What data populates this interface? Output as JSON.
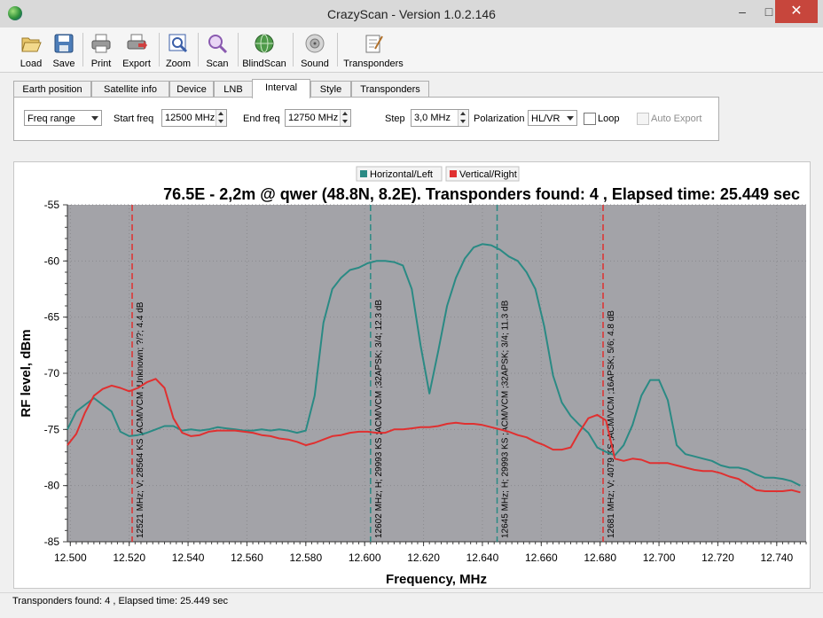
{
  "window": {
    "title": "CrazyScan - Version 1.0.2.146",
    "minimize": "–",
    "maximize": "□",
    "close": "✕"
  },
  "toolbar": {
    "buttons": [
      {
        "label": "Load",
        "icon": "folder-open-icon"
      },
      {
        "label": "Save",
        "icon": "floppy-disk-icon"
      },
      {
        "label": "Print",
        "icon": "printer-icon"
      },
      {
        "label": "Export",
        "icon": "export-printer-icon"
      },
      {
        "label": "Zoom",
        "icon": "zoom-icon"
      },
      {
        "label": "Scan",
        "icon": "magnifier-icon"
      },
      {
        "label": "BlindScan",
        "icon": "globe-icon"
      },
      {
        "label": "Sound",
        "icon": "speaker-icon"
      },
      {
        "label": "Transponders",
        "icon": "notepad-icon"
      }
    ]
  },
  "tabs": [
    {
      "label": "Earth position"
    },
    {
      "label": "Satellite info"
    },
    {
      "label": "Device"
    },
    {
      "label": "LNB"
    },
    {
      "label": "Interval",
      "active": true
    },
    {
      "label": "Style"
    },
    {
      "label": "Transponders"
    }
  ],
  "interval": {
    "mode": "Freq range",
    "start_label": "Start freq",
    "start_value": "12500 MHz",
    "end_label": "End freq",
    "end_value": "12750 MHz",
    "step_label": "Step",
    "step_value": "3,0 MHz",
    "polarization_label": "Polarization",
    "polarization_value": "HL/VR",
    "loop_label": "Loop",
    "loop_checked": false,
    "autoexport_label": "Auto Export",
    "autoexport_checked": false,
    "autoexport_enabled": false
  },
  "chart_data": {
    "type": "line",
    "title": "76.5E - 2,2m @ qwer (48.8N, 8.2E). Transponders found: 4 , Elapsed time: 25.449 sec",
    "xlabel": "Frequency, MHz",
    "ylabel": "RF level, dBm",
    "xlim": [
      12499,
      12750
    ],
    "ylim": [
      -85,
      -55
    ],
    "x_ticks": [
      "12.500",
      "12.520",
      "12.540",
      "12.560",
      "12.580",
      "12.600",
      "12.620",
      "12.640",
      "12.660",
      "12.680",
      "12.700",
      "12.720",
      "12.740"
    ],
    "y_ticks": [
      "-55",
      "-60",
      "-65",
      "-70",
      "-75",
      "-80",
      "-85"
    ],
    "plot_background": "#a3a3a8",
    "legend": {
      "position": "top-center"
    },
    "series": [
      {
        "name": "Horizontal/Left",
        "color": "#2a8a84",
        "points": [
          [
            12499,
            -75.0
          ],
          [
            12502,
            -73.4
          ],
          [
            12505,
            -72.8
          ],
          [
            12508,
            -72.2
          ],
          [
            12511,
            -72.8
          ],
          [
            12514,
            -73.4
          ],
          [
            12517,
            -75.2
          ],
          [
            12520,
            -75.6
          ],
          [
            12523,
            -75.5
          ],
          [
            12526,
            -75.3
          ],
          [
            12529,
            -75.0
          ],
          [
            12532,
            -74.7
          ],
          [
            12535,
            -74.7
          ],
          [
            12538,
            -75.1
          ],
          [
            12541,
            -75.0
          ],
          [
            12544,
            -75.1
          ],
          [
            12547,
            -75.0
          ],
          [
            12550,
            -74.8
          ],
          [
            12553,
            -74.9
          ],
          [
            12556,
            -75.0
          ],
          [
            12559,
            -75.1
          ],
          [
            12562,
            -75.1
          ],
          [
            12565,
            -75.0
          ],
          [
            12568,
            -75.1
          ],
          [
            12571,
            -75.0
          ],
          [
            12574,
            -75.1
          ],
          [
            12577,
            -75.3
          ],
          [
            12580,
            -75.1
          ],
          [
            12583,
            -72.0
          ],
          [
            12586,
            -65.5
          ],
          [
            12589,
            -62.5
          ],
          [
            12592,
            -61.5
          ],
          [
            12595,
            -60.8
          ],
          [
            12598,
            -60.6
          ],
          [
            12601,
            -60.2
          ],
          [
            12604,
            -60.0
          ],
          [
            12607,
            -60.0
          ],
          [
            12610,
            -60.1
          ],
          [
            12613,
            -60.4
          ],
          [
            12616,
            -62.5
          ],
          [
            12619,
            -67.5
          ],
          [
            12622,
            -71.8
          ],
          [
            12625,
            -68.0
          ],
          [
            12628,
            -64.0
          ],
          [
            12631,
            -61.5
          ],
          [
            12634,
            -59.8
          ],
          [
            12637,
            -58.8
          ],
          [
            12640,
            -58.5
          ],
          [
            12643,
            -58.6
          ],
          [
            12646,
            -59.0
          ],
          [
            12649,
            -59.6
          ],
          [
            12652,
            -60.0
          ],
          [
            12655,
            -61.0
          ],
          [
            12658,
            -62.5
          ],
          [
            12661,
            -65.8
          ],
          [
            12664,
            -70.2
          ],
          [
            12667,
            -72.6
          ],
          [
            12670,
            -73.8
          ],
          [
            12673,
            -74.6
          ],
          [
            12676,
            -75.3
          ],
          [
            12679,
            -76.6
          ],
          [
            12682,
            -77.0
          ],
          [
            12685,
            -77.3
          ],
          [
            12688,
            -76.4
          ],
          [
            12691,
            -74.6
          ],
          [
            12694,
            -72.0
          ],
          [
            12697,
            -70.6
          ],
          [
            12700,
            -70.6
          ],
          [
            12703,
            -72.4
          ],
          [
            12706,
            -76.4
          ],
          [
            12709,
            -77.2
          ],
          [
            12712,
            -77.4
          ],
          [
            12715,
            -77.6
          ],
          [
            12718,
            -77.8
          ],
          [
            12721,
            -78.2
          ],
          [
            12724,
            -78.4
          ],
          [
            12727,
            -78.4
          ],
          [
            12730,
            -78.6
          ],
          [
            12733,
            -79.0
          ],
          [
            12736,
            -79.3
          ],
          [
            12739,
            -79.3
          ],
          [
            12742,
            -79.4
          ],
          [
            12745,
            -79.6
          ],
          [
            12748,
            -80.0
          ]
        ]
      },
      {
        "name": "Vertical/Right",
        "color": "#e03030",
        "points": [
          [
            12499,
            -76.4
          ],
          [
            12502,
            -75.4
          ],
          [
            12505,
            -73.5
          ],
          [
            12508,
            -72.0
          ],
          [
            12511,
            -71.4
          ],
          [
            12514,
            -71.1
          ],
          [
            12517,
            -71.3
          ],
          [
            12520,
            -71.6
          ],
          [
            12523,
            -71.3
          ],
          [
            12526,
            -70.8
          ],
          [
            12529,
            -70.5
          ],
          [
            12532,
            -71.3
          ],
          [
            12535,
            -74.0
          ],
          [
            12538,
            -75.3
          ],
          [
            12541,
            -75.6
          ],
          [
            12544,
            -75.5
          ],
          [
            12547,
            -75.2
          ],
          [
            12550,
            -75.1
          ],
          [
            12553,
            -75.1
          ],
          [
            12556,
            -75.1
          ],
          [
            12559,
            -75.2
          ],
          [
            12562,
            -75.3
          ],
          [
            12565,
            -75.5
          ],
          [
            12568,
            -75.6
          ],
          [
            12571,
            -75.8
          ],
          [
            12574,
            -75.9
          ],
          [
            12577,
            -76.1
          ],
          [
            12580,
            -76.4
          ],
          [
            12583,
            -76.2
          ],
          [
            12586,
            -75.9
          ],
          [
            12589,
            -75.6
          ],
          [
            12592,
            -75.5
          ],
          [
            12595,
            -75.3
          ],
          [
            12598,
            -75.2
          ],
          [
            12601,
            -75.2
          ],
          [
            12604,
            -75.3
          ],
          [
            12607,
            -75.3
          ],
          [
            12610,
            -75.0
          ],
          [
            12613,
            -75.0
          ],
          [
            12616,
            -74.9
          ],
          [
            12619,
            -74.8
          ],
          [
            12622,
            -74.8
          ],
          [
            12625,
            -74.7
          ],
          [
            12628,
            -74.5
          ],
          [
            12631,
            -74.4
          ],
          [
            12634,
            -74.5
          ],
          [
            12637,
            -74.5
          ],
          [
            12640,
            -74.6
          ],
          [
            12643,
            -74.8
          ],
          [
            12646,
            -75.0
          ],
          [
            12649,
            -75.2
          ],
          [
            12652,
            -75.5
          ],
          [
            12655,
            -75.7
          ],
          [
            12658,
            -76.1
          ],
          [
            12661,
            -76.4
          ],
          [
            12664,
            -76.8
          ],
          [
            12667,
            -76.8
          ],
          [
            12670,
            -76.6
          ],
          [
            12673,
            -75.2
          ],
          [
            12676,
            -74.0
          ],
          [
            12679,
            -73.7
          ],
          [
            12682,
            -74.2
          ],
          [
            12685,
            -77.6
          ],
          [
            12688,
            -77.8
          ],
          [
            12691,
            -77.6
          ],
          [
            12694,
            -77.7
          ],
          [
            12697,
            -78.0
          ],
          [
            12700,
            -78.0
          ],
          [
            12703,
            -78.0
          ],
          [
            12706,
            -78.2
          ],
          [
            12709,
            -78.4
          ],
          [
            12712,
            -78.6
          ],
          [
            12715,
            -78.7
          ],
          [
            12718,
            -78.7
          ],
          [
            12721,
            -78.9
          ],
          [
            12724,
            -79.2
          ],
          [
            12727,
            -79.4
          ],
          [
            12730,
            -79.9
          ],
          [
            12733,
            -80.4
          ],
          [
            12736,
            -80.5
          ],
          [
            12739,
            -80.5
          ],
          [
            12742,
            -80.5
          ],
          [
            12745,
            -80.4
          ],
          [
            12748,
            -80.6
          ]
        ]
      }
    ],
    "transponders": [
      {
        "freq": 12521,
        "pol": "V",
        "color": "#e03030",
        "label": "12521 MHz; V; 28564 KS ;ACM/VCM ;Unknown; ?/?; 4.4 dB"
      },
      {
        "freq": 12602,
        "pol": "H",
        "color": "#2a8a84",
        "label": "12602 MHz; H; 29993 KS ;ACM/VCM ;32APSK; 3/4; 12.3 dB"
      },
      {
        "freq": 12645,
        "pol": "H",
        "color": "#2a8a84",
        "label": "12645 MHz; H; 29993 KS ;ACM/VCM ;32APSK; 3/4; 11.3 dB"
      },
      {
        "freq": 12681,
        "pol": "V",
        "color": "#e03030",
        "label": "12681 MHz; V; 4079 KS ;ACM/VCM ;16APSK; 5/6; 4.8 dB"
      }
    ]
  },
  "status": {
    "text": "Transponders found: 4 , Elapsed time: 25.449 sec"
  }
}
